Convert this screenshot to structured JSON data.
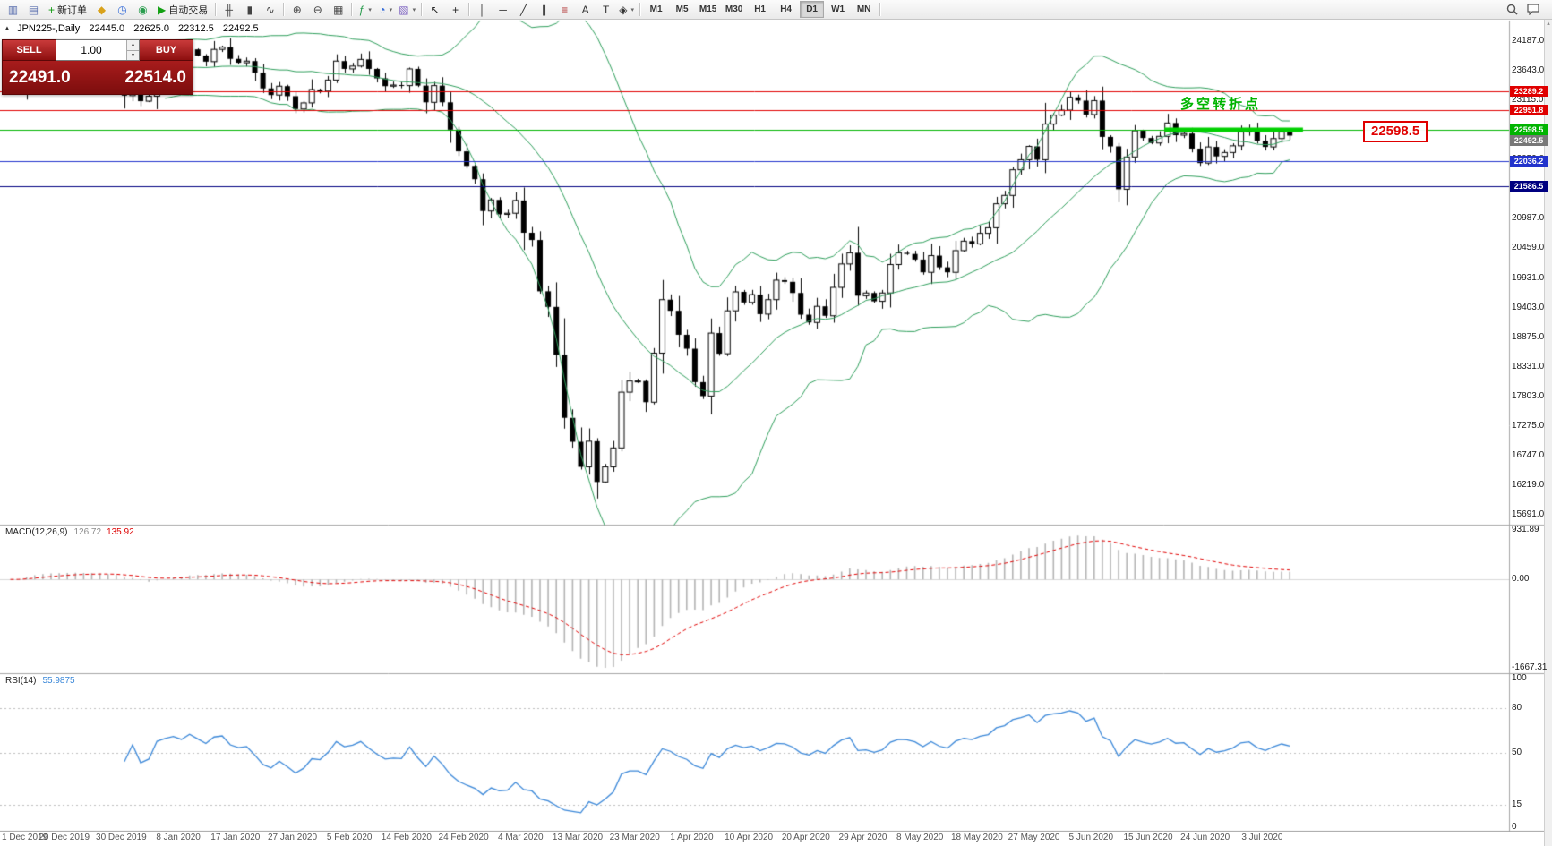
{
  "toolbar": {
    "items": [
      {
        "t": "i",
        "n": "chart-window-icon",
        "g": "▥",
        "c": "#5a6fae"
      },
      {
        "t": "i",
        "n": "profiles-icon",
        "g": "▤",
        "c": "#5a6fae"
      },
      {
        "t": "b",
        "n": "new-order-button",
        "g": "+",
        "c": "#0f9a0f",
        "l": "新订单"
      },
      {
        "t": "i",
        "n": "market-watch-icon",
        "g": "◆",
        "c": "#d9a21b"
      },
      {
        "t": "i",
        "n": "data-window-icon",
        "g": "◷",
        "c": "#3a6fd8"
      },
      {
        "t": "i",
        "n": "navigator-icon",
        "g": "◉",
        "c": "#2a9d4e"
      },
      {
        "t": "b",
        "n": "autotrading-button",
        "g": "▶",
        "c": "#12a012",
        "l": "自动交易"
      },
      {
        "t": "sep"
      },
      {
        "t": "i",
        "n": "bar-chart-icon",
        "g": "╫",
        "c": "#444444"
      },
      {
        "t": "i",
        "n": "candlestick-chart-icon",
        "g": "▮",
        "c": "#444444"
      },
      {
        "t": "i",
        "n": "line-chart-icon",
        "g": "∿",
        "c": "#444444"
      },
      {
        "t": "sep"
      },
      {
        "t": "i",
        "n": "zoom-in-icon",
        "g": "⊕",
        "c": "#444444"
      },
      {
        "t": "i",
        "n": "zoom-out-icon",
        "g": "⊖",
        "c": "#444444"
      },
      {
        "t": "i",
        "n": "tile-windows-icon",
        "g": "▦",
        "c": "#444444"
      },
      {
        "t": "sep"
      },
      {
        "t": "i",
        "n": "indicators-icon",
        "g": "ƒ",
        "c": "#2a9d4e",
        "dd": "▾"
      },
      {
        "t": "i",
        "n": "periods-icon",
        "g": "◔",
        "c": "#3a6fd8",
        "dd": "▾"
      },
      {
        "t": "i",
        "n": "templates-icon",
        "g": "▧",
        "c": "#7a5fc0",
        "dd": "▾"
      },
      {
        "t": "sep"
      },
      {
        "t": "i",
        "n": "cursor-icon",
        "g": "↖",
        "c": "#222222"
      },
      {
        "t": "i",
        "n": "crosshair-icon",
        "g": "+",
        "c": "#222222"
      },
      {
        "t": "sep"
      },
      {
        "t": "i",
        "n": "vertical-line-icon",
        "g": "│",
        "c": "#333333"
      },
      {
        "t": "i",
        "n": "horizontal-line-icon",
        "g": "─",
        "c": "#333333"
      },
      {
        "t": "i",
        "n": "trendline-icon",
        "g": "╱",
        "c": "#333333"
      },
      {
        "t": "i",
        "n": "channel-icon",
        "g": "∥",
        "c": "#333333"
      },
      {
        "t": "i",
        "n": "fibonacci-icon",
        "g": "≡",
        "c": "#b03030"
      },
      {
        "t": "i",
        "n": "text-icon",
        "g": "A",
        "c": "#333333"
      },
      {
        "t": "i",
        "n": "label-icon",
        "g": "T",
        "c": "#333333"
      },
      {
        "t": "i",
        "n": "shapes-icon",
        "g": "◈",
        "c": "#333333",
        "dd": "▾"
      },
      {
        "t": "sep"
      },
      {
        "t": "tf",
        "n": "timeframe-m1",
        "l": "M1"
      },
      {
        "t": "tf",
        "n": "timeframe-m5",
        "l": "M5"
      },
      {
        "t": "tf",
        "n": "timeframe-m15",
        "l": "M15"
      },
      {
        "t": "tf",
        "n": "timeframe-m30",
        "l": "M30"
      },
      {
        "t": "tf",
        "n": "timeframe-h1",
        "l": "H1"
      },
      {
        "t": "tf",
        "n": "timeframe-h4",
        "l": "H4"
      },
      {
        "t": "tf",
        "n": "timeframe-d1",
        "l": "D1",
        "a": 1
      },
      {
        "t": "tf",
        "n": "timeframe-w1",
        "l": "W1"
      },
      {
        "t": "tf",
        "n": "timeframe-mn",
        "l": "MN"
      },
      {
        "t": "sep"
      }
    ]
  },
  "symbol_info": {
    "collapse_icon": "▲",
    "symbol": "JPN225-,Daily",
    "open": "22445.0",
    "high": "22625.0",
    "low": "22312.5",
    "close": "22492.5"
  },
  "trade_panel": {
    "sell_label": "SELL",
    "buy_label": "BUY",
    "volume": "1.00",
    "sell_price": "22491.0",
    "buy_price": "22514.0",
    "spin_up": "▴",
    "spin_down": "▾"
  },
  "price_axis": {
    "labels": [
      "24187.0",
      "23643.0",
      "23115.0",
      "22587.0",
      "22059.0",
      "21531.0",
      "20987.0",
      "20459.0",
      "19931.0",
      "19403.0",
      "18875.0",
      "18331.0",
      "17803.0",
      "17275.0",
      "16747.0",
      "16219.0",
      "15691.0"
    ],
    "tags": [
      {
        "text": "23289.2",
        "price": 23289.2,
        "bg": "#e00000"
      },
      {
        "text": "22951.8",
        "price": 22951.8,
        "bg": "#e00000"
      },
      {
        "text": "22598.5",
        "price": 22598.5,
        "bg": "#00b400"
      },
      {
        "text": "22492.5",
        "price": 22492.5,
        "bg": "#787878"
      },
      {
        "text": "22036.2",
        "price": 22036.2,
        "bg": "#2233cc"
      },
      {
        "text": "21586.5",
        "price": 21586.5,
        "bg": "#000080"
      }
    ]
  },
  "annotations": {
    "turning_point": "多空转折点",
    "price_flag": "22598.5"
  },
  "indicators": {
    "macd": {
      "name": "MACD(12,26,9)",
      "value": "126.72",
      "signal": "135.92",
      "scale": [
        "931.89",
        "0.00",
        "-1667.31"
      ]
    },
    "rsi": {
      "name": "RSI(14)",
      "value": "55.9875",
      "scale": [
        "100",
        "80",
        "50",
        "15",
        "0"
      ],
      "levels": [
        80,
        50,
        15
      ]
    }
  },
  "time_axis": {
    "labels": [
      "1 Dec 2019",
      "20 Dec 2019",
      "30 Dec 2019",
      "8 Jan 2020",
      "17 Jan 2020",
      "27 Jan 2020",
      "5 Feb 2020",
      "14 Feb 2020",
      "24 Feb 2020",
      "4 Mar 2020",
      "13 Mar 2020",
      "23 Mar 2020",
      "1 Apr 2020",
      "10 Apr 2020",
      "20 Apr 2020",
      "29 Apr 2020",
      "8 May 2020",
      "18 May 2020",
      "27 May 2020",
      "5 Jun 2020",
      "15 Jun 2020",
      "24 Jun 2020",
      "3 Jul 2020"
    ]
  },
  "scrollbar": {
    "up_icon": "▴"
  },
  "chart_data": {
    "type": "candlestick",
    "symbol": "JPN225-",
    "timeframe": "Daily",
    "current": {
      "open": 22445.0,
      "high": 22625.0,
      "low": 22312.5,
      "close": 22492.5,
      "bid": 22491.0,
      "ask": 22514.0
    },
    "y_range": {
      "top": 24187.0,
      "bottom": 15691.0
    },
    "closes": [
      23390,
      23440,
      23950,
      23930,
      23890,
      23860,
      23820,
      23830,
      23850,
      23790,
      23750,
      23830,
      23660,
      23650,
      23210,
      23570,
      23110,
      23200,
      23740,
      23850,
      23920,
      23850,
      24040,
      23930,
      23820,
      24040,
      24080,
      23870,
      23800,
      23830,
      23620,
      23340,
      23220,
      23380,
      23200,
      22970,
      23080,
      23320,
      23290,
      23490,
      23830,
      23690,
      23740,
      23860,
      23690,
      23520,
      23380,
      23400,
      23390,
      23690,
      23390,
      23090,
      23390,
      23090,
      22600,
      22210,
      21950,
      21710,
      21140,
      21340,
      21080,
      21100,
      21330,
      20750,
      20620,
      19700,
      19420,
      18560,
      17430,
      17000,
      16550,
      17010,
      16280,
      16550,
      16890,
      17890,
      18090,
      18090,
      17710,
      18590,
      19550,
      19350,
      18920,
      18670,
      18070,
      17820,
      18950,
      18580,
      19350,
      19690,
      19500,
      19640,
      19290,
      19550,
      19900,
      19870,
      19670,
      19280,
      19140,
      19430,
      19260,
      19770,
      20190,
      20390,
      19620,
      19670,
      19520,
      19670,
      20180,
      20390,
      20370,
      20270,
      20040,
      20340,
      20130,
      20040,
      20430,
      20600,
      20550,
      20740,
      20840,
      21270,
      21420,
      21880,
      22060,
      22300,
      22060,
      22700,
      22860,
      22950,
      23180,
      23120,
      22870,
      23120,
      22470,
      22300,
      21530,
      22110,
      22580,
      22450,
      22360,
      22480,
      22720,
      22500,
      22530,
      22260,
      22000,
      22290,
      22120,
      22190,
      22310,
      22560,
      22610,
      22400,
      22290,
      22440,
      22560,
      22492.5
    ],
    "overlays": {
      "bollinger": {
        "period": 20,
        "deviation": 2,
        "color": "#2e9e5b"
      }
    },
    "hlines": [
      {
        "price": 23289.2,
        "color": "#e00000"
      },
      {
        "price": 22951.8,
        "color": "#e00000"
      },
      {
        "price": 22598.5,
        "color": "#00b400"
      },
      {
        "price": 22036.2,
        "color": "#2233cc"
      },
      {
        "price": 21586.5,
        "color": "#000080"
      }
    ],
    "trend_segment": {
      "price": 22598.5,
      "from_bar": 142,
      "to_bar": 159,
      "color": "#00d000",
      "width": 5
    },
    "macd_range": {
      "max": 931.89,
      "min": -1667.31
    }
  }
}
